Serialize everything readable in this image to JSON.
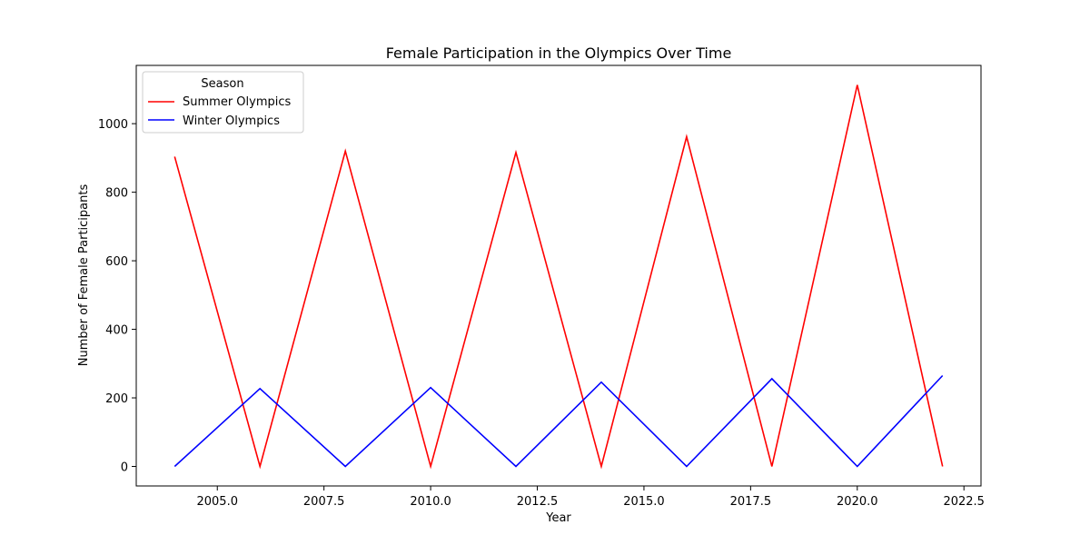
{
  "chart_data": {
    "type": "line",
    "title": "Female Participation in the Olympics Over Time",
    "xlabel": "Year",
    "ylabel": "Number of Female Participants",
    "xlim": [
      2003.1,
      2022.9
    ],
    "ylim": [
      -57,
      1170
    ],
    "xticks": [
      2005.0,
      2007.5,
      2010.0,
      2012.5,
      2015.0,
      2017.5,
      2020.0,
      2022.5
    ],
    "xtick_labels": [
      "2005.0",
      "2007.5",
      "2010.0",
      "2012.5",
      "2015.0",
      "2017.5",
      "2020.0",
      "2022.5"
    ],
    "yticks": [
      0,
      200,
      400,
      600,
      800,
      1000
    ],
    "ytick_labels": [
      "0",
      "200",
      "400",
      "600",
      "800",
      "1000"
    ],
    "grid": false,
    "legend": {
      "title": "Season",
      "placement": "upper-left"
    },
    "x": [
      2004,
      2006,
      2008,
      2010,
      2012,
      2014,
      2016,
      2018,
      2020,
      2022
    ],
    "series": [
      {
        "name": "Summer Olympics",
        "color": "#ff0000",
        "values": [
          904,
          0,
          920,
          0,
          916,
          0,
          962,
          0,
          1113,
          0
        ]
      },
      {
        "name": "Winter Olympics",
        "color": "#0000ff",
        "values": [
          0,
          227,
          0,
          230,
          0,
          246,
          0,
          256,
          0,
          265
        ]
      }
    ]
  }
}
